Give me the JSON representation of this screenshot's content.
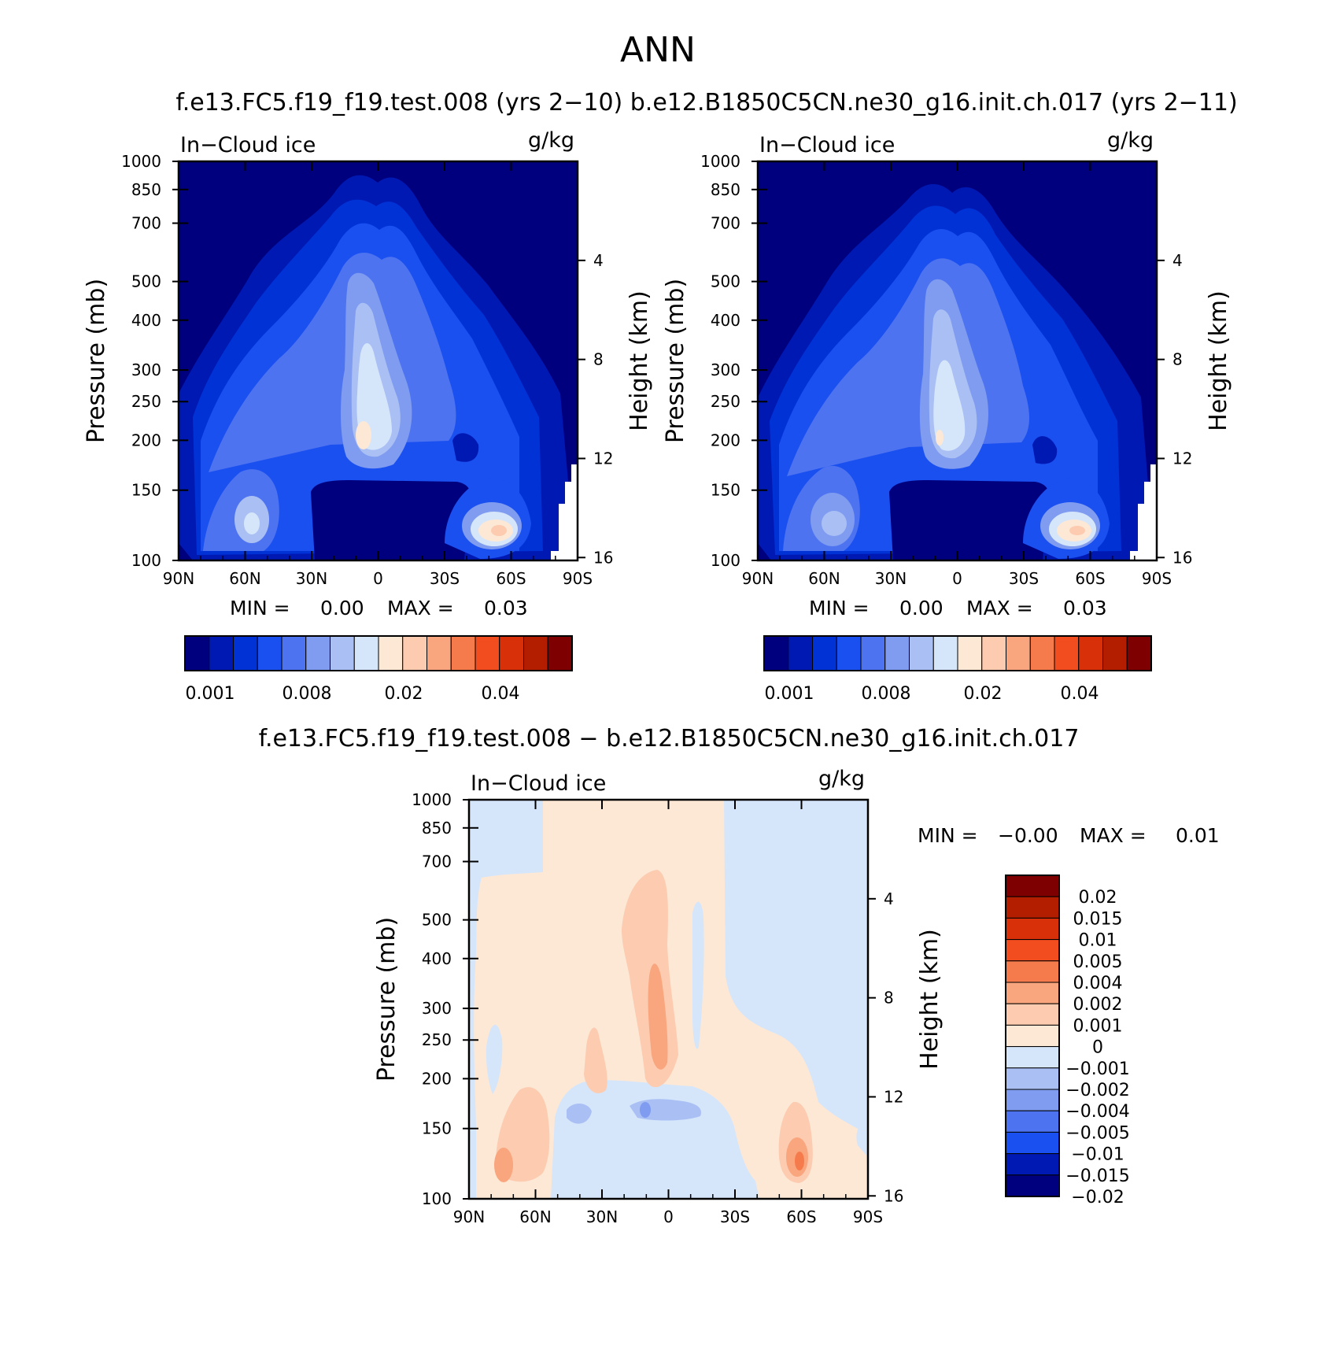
{
  "page": {
    "season": "ANN",
    "top_title": "f.e13.FC5.f19_f19.test.008 (yrs 2−10) b.e12.B1850C5CN.ne30_g16.init.ch.017 (yrs 2−11)",
    "diff_title": "f.e13.FC5.f19_f19.test.008 − b.e12.B1850C5CN.ne30_g16.init.ch.017"
  },
  "colors": {
    "sequential": [
      "#00007f",
      "#0019b3",
      "#0032d6",
      "#1a4ff0",
      "#4d73f0",
      "#7f9cf0",
      "#aac0f5",
      "#d6e6fa",
      "#fde8d5",
      "#fccbb0",
      "#f9a57d",
      "#f67b4c",
      "#f24d1f",
      "#d83008",
      "#b31e00",
      "#7f0000"
    ],
    "diverging": [
      "#00007f",
      "#0019b3",
      "#1a4ff0",
      "#4d73f0",
      "#7f9cf0",
      "#aac0f5",
      "#d6e6fa",
      "#fde8d5",
      "#fccbb0",
      "#f9a57d",
      "#f67b4c",
      "#f24d1f",
      "#d83008",
      "#b31e00",
      "#7f0000"
    ]
  },
  "chart_data": [
    {
      "type": "heatmap",
      "id": "panel-model",
      "title": "In−Cloud ice",
      "units": "g/kg",
      "xlabel": "",
      "ylabel": "Pressure (mb)",
      "y2label": "Height (km)",
      "x_ticks": [
        "90N",
        "60N",
        "30N",
        "0",
        "30S",
        "60S",
        "90S"
      ],
      "y_ticks": [
        100,
        150,
        200,
        250,
        300,
        400,
        500,
        700,
        850,
        1000
      ],
      "y2_ticks": [
        16,
        12,
        8,
        4
      ],
      "ylim": [
        1000,
        100
      ],
      "min_label": "MIN =",
      "min_value": "0.00",
      "max_label": "MAX =",
      "max_value": "0.03",
      "colorbar_levels": [
        "0.001",
        "0.008",
        "0.02",
        "0.04"
      ]
    },
    {
      "type": "heatmap",
      "id": "panel-obs",
      "title": "In−Cloud ice",
      "units": "g/kg",
      "xlabel": "",
      "ylabel": "Pressure (mb)",
      "y2label": "Height (km)",
      "x_ticks": [
        "90N",
        "60N",
        "30N",
        "0",
        "30S",
        "60S",
        "90S"
      ],
      "y_ticks": [
        100,
        150,
        200,
        250,
        300,
        400,
        500,
        700,
        850,
        1000
      ],
      "y2_ticks": [
        16,
        12,
        8,
        4
      ],
      "ylim": [
        1000,
        100
      ],
      "min_label": "MIN =",
      "min_value": "0.00",
      "max_label": "MAX =",
      "max_value": "0.03",
      "colorbar_levels": [
        "0.001",
        "0.008",
        "0.02",
        "0.04"
      ]
    },
    {
      "type": "heatmap",
      "id": "panel-diff",
      "title": "In−Cloud ice",
      "units": "g/kg",
      "xlabel": "",
      "ylabel": "Pressure (mb)",
      "y2label": "Height (km)",
      "x_ticks": [
        "90N",
        "60N",
        "30N",
        "0",
        "30S",
        "60S",
        "90S"
      ],
      "y_ticks": [
        100,
        150,
        200,
        250,
        300,
        400,
        500,
        700,
        850,
        1000
      ],
      "y2_ticks": [
        16,
        12,
        8,
        4
      ],
      "ylim": [
        1000,
        100
      ],
      "min_label": "MIN =",
      "min_value": "−0.00",
      "max_label": "MAX =",
      "max_value": "0.01",
      "colorbar_levels": [
        "0.02",
        "0.015",
        "0.01",
        "0.005",
        "0.004",
        "0.002",
        "0.001",
        "0",
        "−0.001",
        "−0.002",
        "−0.004",
        "−0.005",
        "−0.01",
        "−0.015",
        "−0.02"
      ]
    }
  ]
}
